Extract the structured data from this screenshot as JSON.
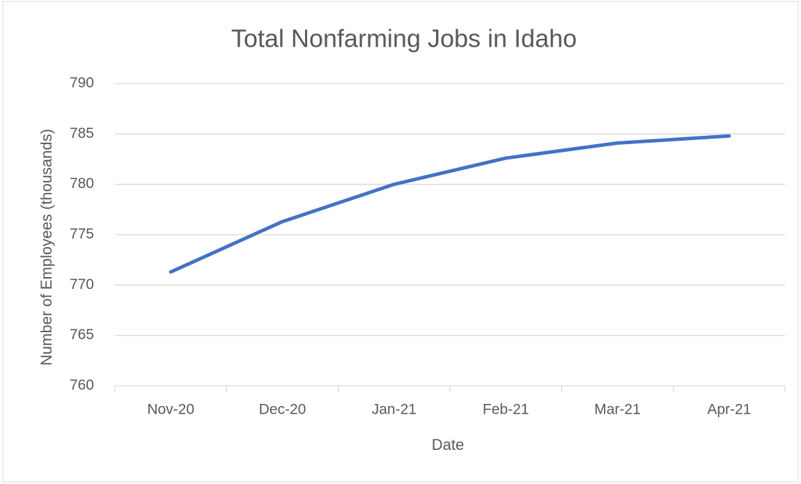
{
  "chart_data": {
    "type": "line",
    "title": "Total Nonfarming Jobs in Idaho",
    "x_label": "Date",
    "y_label": "Number of Employees (thousands)",
    "categories": [
      "Nov-20",
      "Dec-20",
      "Jan-21",
      "Feb-21",
      "Mar-21",
      "Apr-21"
    ],
    "values": [
      771.3,
      776.3,
      780.0,
      782.6,
      784.1,
      784.8
    ],
    "color": "#4472c4",
    "ylim": [
      760,
      790
    ],
    "yticks": [
      760,
      765,
      770,
      775,
      780,
      785,
      790
    ],
    "grid": true
  }
}
